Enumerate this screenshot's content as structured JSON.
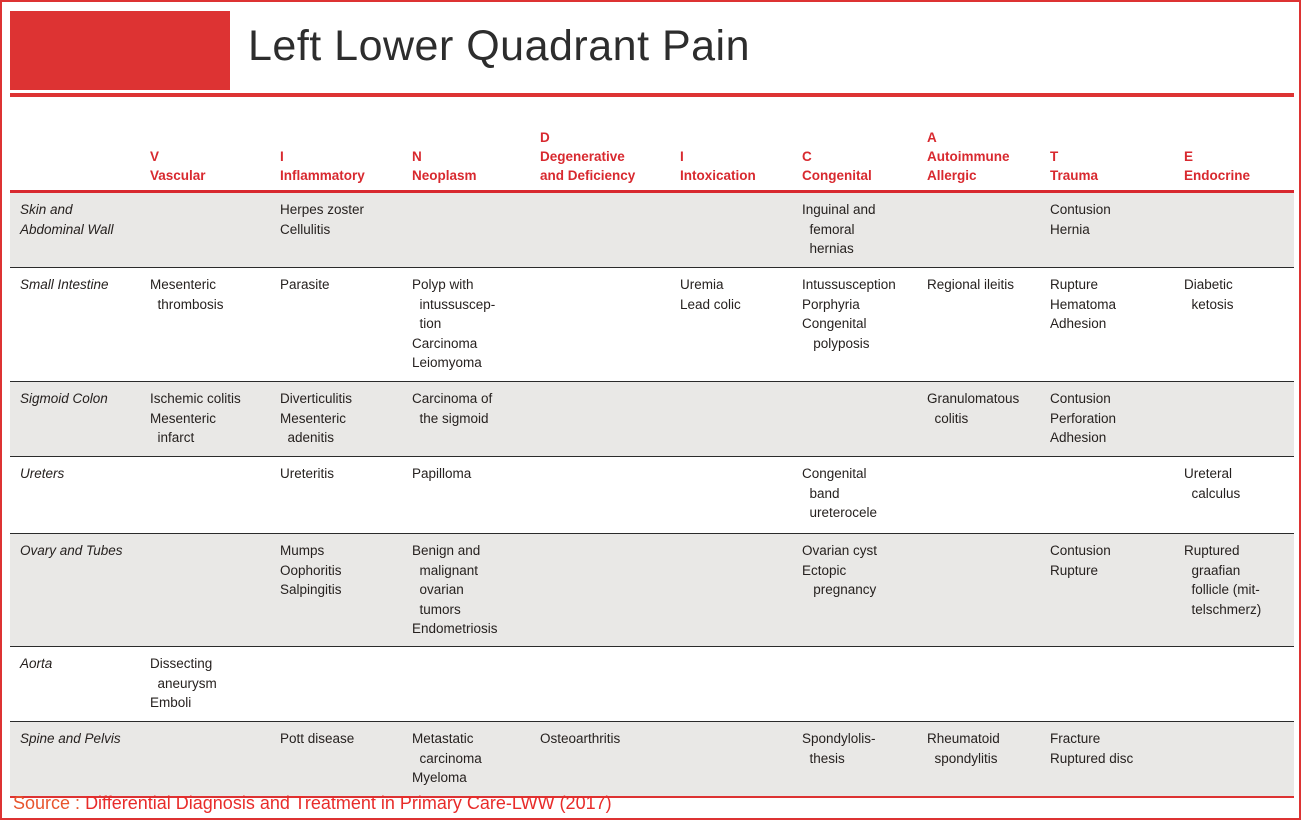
{
  "page": {
    "title": "Left Lower Quadrant Pain",
    "source_label": "Source :",
    "source_text": "Differential Diagnosis and Treatment in Primary Care-LWW (2017)",
    "colors": {
      "accent_red": "#dd3333",
      "header_text_red": "#d8292f",
      "row_shade_gray": "#e9e8e6",
      "body_text": "#26211f",
      "source_label_orange": "#e8552d",
      "source_text_red": "#e82c2a"
    }
  },
  "table": {
    "mnemonic": "VINDICATE",
    "columns": [
      {
        "key": "vascular",
        "letter": "V",
        "name": "Vascular"
      },
      {
        "key": "inflammatory",
        "letter": "I",
        "name": "Inflammatory"
      },
      {
        "key": "neoplasm",
        "letter": "N",
        "name": "Neoplasm"
      },
      {
        "key": "degenerative",
        "letter": "D",
        "name": "Degenerative\nand Deficiency"
      },
      {
        "key": "intoxication",
        "letter": "I",
        "name": "Intoxication"
      },
      {
        "key": "congenital",
        "letter": "C",
        "name": "Congenital"
      },
      {
        "key": "autoimmune",
        "letter": "A",
        "name": "Autoimmune\nAllergic"
      },
      {
        "key": "trauma",
        "letter": "T",
        "name": "Trauma"
      },
      {
        "key": "endocrine",
        "letter": "E",
        "name": "Endocrine"
      }
    ],
    "rows": [
      {
        "region": "Skin and\nAbdominal Wall",
        "cells": [
          "",
          "Herpes zoster\nCellulitis",
          "",
          "",
          "",
          "Inguinal and\n  femoral\n  hernias",
          "",
          "Contusion\nHernia",
          ""
        ]
      },
      {
        "region": "Small Intestine",
        "cells": [
          "Mesenteric\n  thrombosis",
          "Parasite",
          "Polyp with\n  intussuscep-\n  tion\nCarcinoma\nLeiomyoma",
          "",
          "Uremia\nLead colic",
          "Intussusception\nPorphyria\nCongenital\n   polyposis",
          "Regional ileitis",
          "Rupture\nHematoma\nAdhesion",
          "Diabetic\n  ketosis"
        ]
      },
      {
        "region": "Sigmoid Colon",
        "cells": [
          "Ischemic colitis\nMesenteric\n  infarct",
          "Diverticulitis\nMesenteric\n  adenitis",
          "Carcinoma of\n  the sigmoid",
          "",
          "",
          "",
          "Granulomatous\n  colitis",
          "Contusion\nPerforation\nAdhesion",
          ""
        ]
      },
      {
        "region": "Ureters",
        "cells": [
          "",
          "Ureteritis",
          "Papilloma",
          "",
          "",
          "Congenital\n  band\n  ureterocele",
          "",
          "",
          "Ureteral\n  calculus"
        ]
      },
      {
        "region": "Ovary and Tubes",
        "cells": [
          "",
          "Mumps\nOophoritis\nSalpingitis",
          "Benign and\n  malignant\n  ovarian\n  tumors\nEndometriosis",
          "",
          "",
          "Ovarian cyst\nEctopic\n   pregnancy",
          "",
          "Contusion\nRupture",
          "Ruptured\n  graafian\n  follicle (mit-\n  telschmerz)"
        ]
      },
      {
        "region": "Aorta",
        "cells": [
          "Dissecting\n  aneurysm\nEmboli",
          "",
          "",
          "",
          "",
          "",
          "",
          "",
          ""
        ]
      },
      {
        "region": "Spine and Pelvis",
        "cells": [
          "",
          "Pott disease",
          "Metastatic\n  carcinoma\nMyeloma",
          "Osteoarthritis",
          "",
          "Spondylolis-\n  thesis",
          "Rheumatoid\n  spondylitis",
          "Fracture\nRuptured disc",
          ""
        ]
      }
    ]
  }
}
